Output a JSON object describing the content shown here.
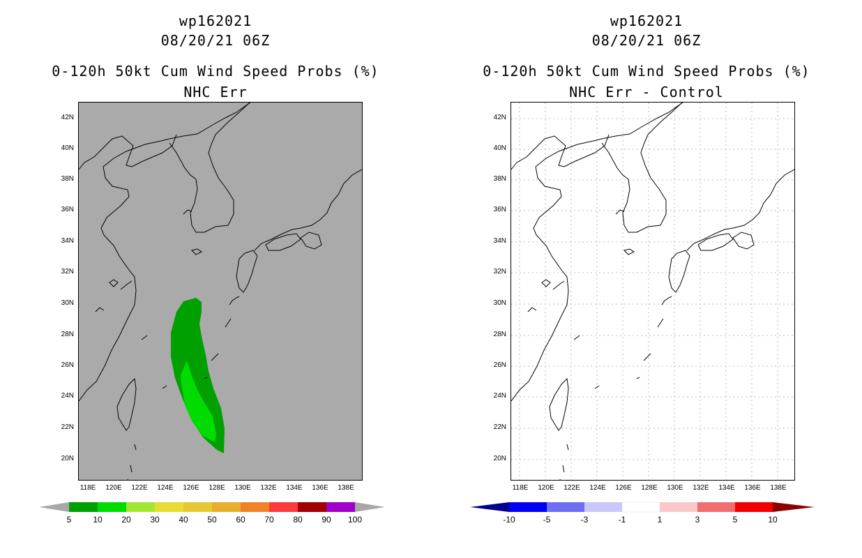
{
  "left": {
    "storm_id": "wp162021",
    "datetime": "08/20/21 06Z",
    "product": "0-120h 50kt Cum Wind Speed Probs (%)",
    "subtitle": "NHC Err",
    "background_color": "#aaaaaa",
    "colorbar": {
      "labels": [
        "5",
        "10",
        "20",
        "30",
        "40",
        "50",
        "60",
        "70",
        "80",
        "90",
        "100"
      ],
      "colors": [
        "#00a000",
        "#00dc00",
        "#a0e632",
        "#e6dc32",
        "#e6c832",
        "#e6af2d",
        "#f08228",
        "#fa3c3c",
        "#a00000",
        "#a000c8"
      ],
      "end_left": "#a8a8a8",
      "end_right": "#a8a8a8"
    },
    "probability_contours": [
      {
        "level_percent": 5,
        "color": "#00a000"
      },
      {
        "level_percent": 10,
        "color": "#00dc00"
      }
    ]
  },
  "right": {
    "storm_id": "wp162021",
    "datetime": "08/20/21 06Z",
    "product": "0-120h 50kt Cum Wind Speed Probs (%)",
    "subtitle": "NHC Err - Control",
    "background_color": "#ffffff",
    "colorbar": {
      "labels": [
        "-10",
        "-5",
        "-3",
        "-1",
        "1",
        "3",
        "5",
        "10"
      ],
      "colors": [
        "#0000f0",
        "#6e6ef0",
        "#c8c8fa",
        "#ffffff",
        "#fac8c8",
        "#f06e6e",
        "#f00000"
      ],
      "end_left": "#00008c",
      "end_right": "#8c0000"
    }
  },
  "lat_labels": [
    "42N",
    "40N",
    "38N",
    "36N",
    "34N",
    "32N",
    "30N",
    "28N",
    "26N",
    "24N",
    "22N",
    "20N"
  ],
  "lon_labels": [
    "118E",
    "120E",
    "122E",
    "124E",
    "126E",
    "128E",
    "130E",
    "132E",
    "134E",
    "136E",
    "138E"
  ],
  "lat_values": [
    42,
    40,
    38,
    36,
    34,
    32,
    30,
    28,
    26,
    24,
    22,
    20
  ],
  "lon_values": [
    118,
    120,
    122,
    124,
    126,
    128,
    130,
    132,
    134,
    136,
    138
  ],
  "map_extent": {
    "lon_min": 117.4,
    "lon_max": 139.4,
    "lat_min": 18.7,
    "lat_max": 43.0
  }
}
